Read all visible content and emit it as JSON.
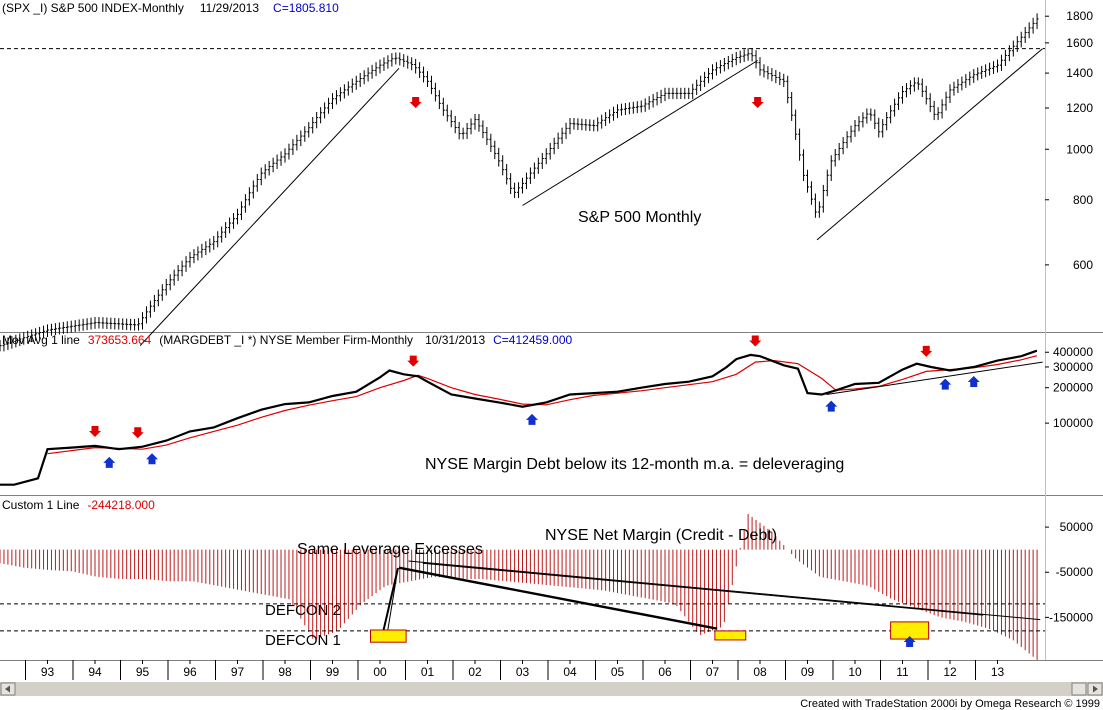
{
  "panels": {
    "price": {
      "header": {
        "symbol": "(SPX _I) S&P 500 INDEX-Monthly",
        "date": "11/29/2013",
        "close": "C=1805.810"
      },
      "annotation": "S&P 500 Monthly",
      "ticks": [
        "1800",
        "1600",
        "1400",
        "1200",
        "1000",
        "800",
        "600"
      ]
    },
    "margin_debt": {
      "header": {
        "study": "Mov Avg 1 line",
        "study_value": "373653.664",
        "symbol": "(MARGDEBT _I     *) NYSE Member Firm-Monthly",
        "date": "10/31/2013",
        "close": "C=412459.000"
      },
      "annotation": "NYSE Margin Debt below its 12-month m.a. = deleveraging",
      "ticks": [
        "400000",
        "300000",
        "200000",
        "100000"
      ]
    },
    "net_margin": {
      "header": {
        "study": "Custom 1 Line",
        "study_value": "-244218.000"
      },
      "annotations": {
        "title": "NYSE Net Margin (Credit - Debt)",
        "same_leverage": "Same Leverage Excesses",
        "defcon2": "DEFCON 2",
        "defcon1": "DEFCON 1"
      },
      "ticks": [
        "50000",
        "-50000",
        "-150000"
      ]
    }
  },
  "x_axis": {
    "labels": [
      "93",
      "94",
      "95",
      "96",
      "97",
      "98",
      "99",
      "00",
      "01",
      "02",
      "03",
      "04",
      "05",
      "06",
      "07",
      "08",
      "09",
      "10",
      "11",
      "12",
      "13"
    ]
  },
  "footer": {
    "credit": "Created with TradeStation 2000i by Omega Research © 1999"
  },
  "colors": {
    "price": "#000000",
    "ma": "#dd0000",
    "bars": "#c01818",
    "down_arrow": "#e00000",
    "up_arrow": "#1030d0",
    "highlight": "#ffee00",
    "header_blue": "#0000cc",
    "header_red": "#dd0000",
    "scrollbar": "#d4d0c8"
  },
  "chart_data": [
    {
      "type": "line",
      "title": "",
      "ylabel": "",
      "scale": "log",
      "ylim": [
        450,
        1850
      ],
      "x": [
        1992.0,
        1993.0,
        1994.0,
        1994.9,
        1995.5,
        1996.0,
        1996.5,
        1997.0,
        1997.5,
        1998.0,
        1998.5,
        1999.0,
        1999.5,
        2000.0,
        2000.3,
        2000.7,
        2001.0,
        2001.3,
        2001.7,
        2002.0,
        2002.5,
        2002.8,
        2003.0,
        2003.5,
        2004.0,
        2004.5,
        2005.0,
        2005.5,
        2006.0,
        2006.5,
        2007.0,
        2007.5,
        2007.8,
        2008.0,
        2008.5,
        2008.9,
        2009.2,
        2009.5,
        2010.0,
        2010.3,
        2010.5,
        2011.0,
        2011.3,
        2011.7,
        2012.0,
        2012.5,
        2013.0,
        2013.5,
        2013.9
      ],
      "values": [
        420,
        450,
        465,
        460,
        550,
        620,
        665,
        750,
        900,
        980,
        1100,
        1250,
        1350,
        1450,
        1500,
        1450,
        1350,
        1200,
        1060,
        1140,
        950,
        820,
        860,
        980,
        1120,
        1110,
        1190,
        1210,
        1280,
        1280,
        1420,
        1500,
        1530,
        1420,
        1350,
        900,
        740,
        950,
        1110,
        1180,
        1080,
        1290,
        1350,
        1150,
        1300,
        1390,
        1450,
        1640,
        1806
      ],
      "trendlines": [
        [
          1994.95,
          420,
          2000.4,
          1430
        ],
        [
          2003.0,
          780,
          2007.95,
          1480
        ],
        [
          2009.2,
          670,
          2013.95,
          1560
        ]
      ],
      "reference_line": 1560,
      "down_arrows": [
        2000.75,
        2007.95
      ]
    },
    {
      "type": "line",
      "title": "",
      "ylabel": "",
      "scale": "log",
      "ylim": [
        25000,
        470000
      ],
      "series": [
        {
          "x": [
            1992.0,
            1992.3,
            1992.8,
            1993.0,
            1993.5,
            1994.0,
            1994.5,
            1995.0,
            1995.5,
            1996.0,
            1996.5,
            1997.0,
            1997.5,
            1998.0,
            1998.5,
            1999.0,
            1999.5,
            2000.0,
            2000.2,
            2000.5,
            2000.8,
            2001.0,
            2001.5,
            2002.0,
            2002.5,
            2003.0,
            2003.5,
            2004.0,
            2004.5,
            2005.0,
            2005.5,
            2006.0,
            2006.5,
            2007.0,
            2007.3,
            2007.5,
            2007.8,
            2008.0,
            2008.5,
            2008.8,
            2009.0,
            2009.3,
            2009.6,
            2010.0,
            2010.5,
            2011.0,
            2011.3,
            2011.6,
            2012.0,
            2012.5,
            2013.0,
            2013.5,
            2013.83
          ],
          "values": [
            30000,
            30000,
            34000,
            60000,
            62000,
            64000,
            60000,
            63000,
            71000,
            85000,
            92000,
            110000,
            130000,
            145000,
            150000,
            170000,
            185000,
            245000,
            280000,
            260000,
            250000,
            225000,
            175000,
            162000,
            150000,
            138000,
            150000,
            175000,
            180000,
            185000,
            200000,
            215000,
            225000,
            250000,
            300000,
            350000,
            380000,
            370000,
            310000,
            290000,
            180000,
            175000,
            190000,
            215000,
            220000,
            285000,
            320000,
            300000,
            280000,
            300000,
            340000,
            370000,
            412459
          ]
        },
        {
          "x": [
            1993.0,
            1994.0,
            1994.5,
            1995.0,
            1995.5,
            1996.0,
            1996.5,
            1997.0,
            1997.5,
            1998.0,
            1998.5,
            1999.0,
            1999.5,
            2000.0,
            2000.5,
            2000.8,
            2001.0,
            2001.5,
            2002.0,
            2002.5,
            2003.0,
            2003.5,
            2004.0,
            2004.5,
            2005.0,
            2005.5,
            2006.0,
            2006.5,
            2007.0,
            2007.5,
            2007.9,
            2008.3,
            2008.8,
            2009.3,
            2009.6,
            2010.0,
            2010.5,
            2011.0,
            2011.5,
            2012.0,
            2012.5,
            2013.0,
            2013.5,
            2013.83
          ],
          "values": [
            55000,
            62000,
            61000,
            60000,
            65000,
            75000,
            85000,
            96000,
            112000,
            128000,
            142000,
            155000,
            168000,
            200000,
            230000,
            255000,
            240000,
            200000,
            175000,
            160000,
            145000,
            143000,
            158000,
            172000,
            180000,
            188000,
            200000,
            212000,
            225000,
            260000,
            330000,
            340000,
            320000,
            240000,
            190000,
            195000,
            205000,
            235000,
            275000,
            285000,
            295000,
            315000,
            345000,
            373654
          ]
        }
      ],
      "trendlines": [
        [
          2009.4,
          175000,
          2013.95,
          330000
        ]
      ],
      "down_arrows": [
        1994.0,
        1994.9,
        2000.7,
        2007.9,
        2011.5
      ],
      "up_arrows": [
        1994.3,
        1995.2,
        2003.2,
        2009.5,
        2011.9,
        2012.5
      ]
    },
    {
      "type": "bar",
      "title": "",
      "ylabel": "",
      "ylim": [
        -240000,
        110000
      ],
      "x_start": 1992.0,
      "x_end": 2013.83,
      "values": [
        -30000,
        -40000,
        -45000,
        -48000,
        -60000,
        -65000,
        -65000,
        -70000,
        -70000,
        -80000,
        -90000,
        -100000,
        -110000,
        -200000,
        -180000,
        -120000,
        -80000,
        -70000,
        -60000,
        -65000,
        -65000,
        -70000,
        -75000,
        -80000,
        -85000,
        -90000,
        -100000,
        -110000,
        -120000,
        -190000,
        -170000,
        80000,
        40000,
        -20000,
        -60000,
        -70000,
        -80000,
        -110000,
        -130000,
        -150000,
        -160000,
        -175000,
        -200000,
        -244218
      ],
      "reference_lines": [
        -120000,
        -180000
      ],
      "trendlines": [
        [
          2000.4,
          -40000,
          2007.1,
          -175000
        ],
        [
          2000.6,
          -25000,
          2013.9,
          -155000
        ],
        [
          2000.9,
          -30000,
          2012.7,
          -145000
        ]
      ],
      "highlight_boxes": [
        [
          1999.8,
          2000.55,
          -178000,
          -205000
        ],
        [
          2007.05,
          2007.7,
          -180000,
          -200000
        ],
        [
          2010.75,
          2011.55,
          -160000,
          -198000
        ]
      ]
    }
  ]
}
